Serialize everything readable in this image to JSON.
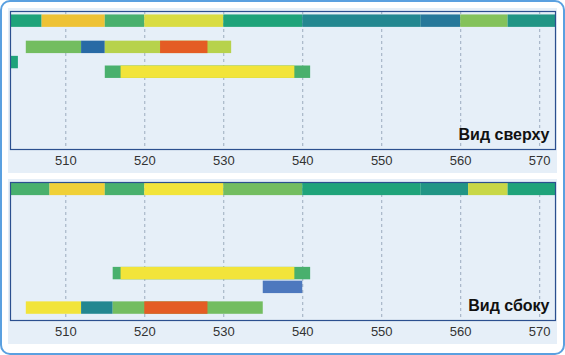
{
  "chart_data": [
    {
      "type": "heatmap",
      "title": "Вид сверху",
      "xlim": [
        503,
        572
      ],
      "xticks": [
        510,
        520,
        530,
        540,
        550,
        560,
        570
      ],
      "ylim": [
        0,
        10
      ],
      "zlim": [
        0,
        1
      ],
      "grid": true,
      "tick_labels": "x",
      "cells": [
        [
          503,
          507,
          9.3,
          0.5
        ],
        [
          507,
          515,
          9.3,
          0.8
        ],
        [
          515,
          520,
          9.3,
          0.55
        ],
        [
          520,
          530,
          9.3,
          0.72
        ],
        [
          530,
          540,
          9.3,
          0.5
        ],
        [
          540,
          555,
          9.3,
          0.4
        ],
        [
          555,
          560,
          9.3,
          0.35
        ],
        [
          560,
          566,
          9.3,
          0.62
        ],
        [
          566,
          572,
          9.3,
          0.45
        ],
        [
          505,
          512,
          7.4,
          0.6
        ],
        [
          512,
          515,
          7.4,
          0.3
        ],
        [
          515,
          531,
          7.4,
          0.68
        ],
        [
          522,
          528,
          7.4,
          0.95
        ],
        [
          503,
          504,
          6.3,
          0.5
        ],
        [
          515,
          541,
          5.6,
          0.55
        ],
        [
          517,
          539,
          5.6,
          0.75
        ]
      ]
    },
    {
      "type": "heatmap",
      "title": "Вид сбоку",
      "xlim": [
        503,
        572
      ],
      "xticks": [
        510,
        520,
        530,
        540,
        550,
        560,
        570
      ],
      "ylim": [
        0,
        10
      ],
      "zlim": [
        0,
        1
      ],
      "grid": true,
      "tick_labels": "x",
      "cells": [
        [
          503,
          508,
          9.5,
          0.55
        ],
        [
          508,
          515,
          9.5,
          0.78
        ],
        [
          515,
          520,
          9.5,
          0.55
        ],
        [
          520,
          530,
          9.5,
          0.75
        ],
        [
          530,
          540,
          9.5,
          0.6
        ],
        [
          540,
          555,
          9.5,
          0.5
        ],
        [
          555,
          561,
          9.5,
          0.45
        ],
        [
          561,
          566,
          9.5,
          0.7
        ],
        [
          566,
          572,
          9.5,
          0.5
        ],
        [
          516,
          541,
          3.4,
          0.55
        ],
        [
          517,
          539,
          3.4,
          0.75
        ],
        [
          535,
          540,
          2.4,
          0.2
        ],
        [
          505,
          512,
          0.9,
          0.75
        ],
        [
          512,
          516,
          0.9,
          0.4
        ],
        [
          516,
          535,
          0.9,
          0.6
        ],
        [
          520,
          528,
          0.9,
          0.95
        ]
      ]
    }
  ]
}
